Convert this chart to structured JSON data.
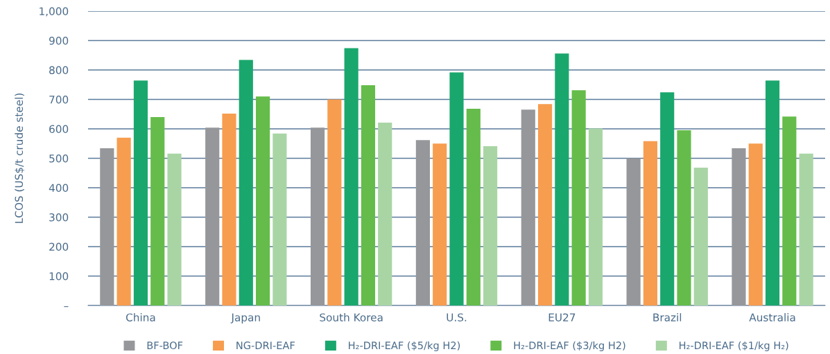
{
  "chart_data": {
    "type": "bar",
    "ylabel": "LCOS (US$/t crude steel)",
    "categories": [
      "China",
      "Japan",
      "South Korea",
      "U.S.",
      "EU27",
      "Brazil",
      "Australia"
    ],
    "series": [
      {
        "name": "BF-BOF",
        "color": "#96979a",
        "values": [
          534,
          604,
          604,
          562,
          665,
          500,
          534
        ]
      },
      {
        "name": "NG-DRI-EAF",
        "color": "#f79d4f",
        "values": [
          570,
          652,
          700,
          550,
          684,
          558,
          550
        ]
      },
      {
        "name": "H₂-DRI-EAF ($5/kg H2)",
        "color": "#1aa76d",
        "values": [
          764,
          834,
          874,
          792,
          856,
          724,
          764
        ]
      },
      {
        "name": "H₂-DRI-EAF ($3/kg H2)",
        "color": "#65bc4b",
        "values": [
          640,
          710,
          748,
          668,
          731,
          595,
          642
        ]
      },
      {
        "name": "H₂-DRI-EAF ($1/kg H₂)",
        "color": "#a9d5a5",
        "values": [
          516,
          584,
          621,
          541,
          601,
          468,
          516
        ]
      }
    ],
    "ylim": [
      0,
      1000
    ],
    "yticks": [
      {
        "value": 0,
        "label": "–"
      },
      100,
      200,
      300,
      400,
      500,
      600,
      700,
      800,
      900,
      {
        "value": 1000,
        "label": "1,000"
      }
    ],
    "grid": "y",
    "legend": "bottom"
  }
}
